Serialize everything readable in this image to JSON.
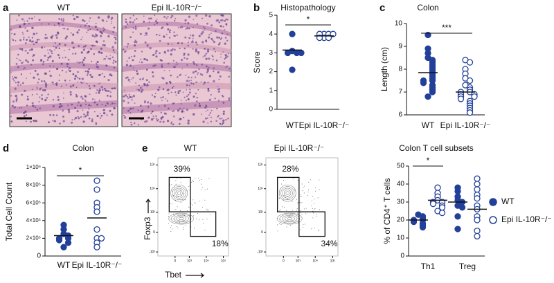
{
  "chart_data": [
    {
      "type": "image",
      "label": "a",
      "title": "WT"
    },
    {
      "type": "image",
      "title": "Epi IL-10R⁻/⁻"
    },
    {
      "type": "dot",
      "label": "b",
      "title": "Histopathology",
      "ylabel": "Score",
      "categories": [
        "WT",
        "Epi IL-10R⁻/⁻"
      ],
      "color": "#22409a",
      "open": [
        false,
        true
      ],
      "values": [
        [
          4,
          3.1,
          3,
          3,
          3,
          2.1
        ],
        [
          4,
          4,
          4,
          4,
          3.8,
          3.8,
          3.8
        ]
      ],
      "means": [
        3.15,
        3.9
      ],
      "ylim": [
        0,
        5
      ],
      "yticks": [
        0,
        1,
        2,
        3,
        4,
        5
      ],
      "significance": "*"
    },
    {
      "type": "dot",
      "label": "c",
      "title": "Colon",
      "ylabel": "Length (cm)",
      "categories": [
        "WT",
        "Epi IL-10R⁻/⁻"
      ],
      "color": "#22409a",
      "open": [
        false,
        true
      ],
      "values": [
        [
          9.5,
          8.9,
          8.7,
          8.5,
          8.4,
          8.3,
          8.2,
          8.1,
          8.0,
          7.9,
          7.8,
          7.7,
          7.6,
          7.5,
          7.5,
          7.4,
          7.3,
          7.2,
          7.1,
          7.0,
          6.8
        ],
        [
          8.4,
          8.3,
          8.0,
          7.8,
          7.6,
          7.5,
          7.3,
          7.2,
          7.1,
          7.0,
          7.0,
          6.9,
          6.9,
          6.8,
          6.8,
          6.7,
          6.6,
          6.5,
          6.4,
          6.3,
          6.2,
          6.1
        ]
      ],
      "means": [
        7.85,
        7.0
      ],
      "ylim": [
        6,
        10
      ],
      "yticks": [
        6,
        7,
        8,
        9,
        10
      ],
      "significance": "***"
    },
    {
      "type": "dot",
      "label": "d",
      "title": "Colon",
      "ylabel": "Total Cell Count",
      "categories": [
        "WT",
        "Epi IL-10R⁻/⁻"
      ],
      "color": "#22409a",
      "open": [
        false,
        true
      ],
      "values": [
        [
          350000,
          300000,
          250000,
          230000,
          200000,
          200000,
          180000,
          150000,
          100000
        ],
        [
          850000,
          750000,
          600000,
          550000,
          500000,
          300000,
          200000,
          200000,
          150000,
          100000
        ]
      ],
      "means": [
        230000,
        430000
      ],
      "ylim": [
        0,
        1000000
      ],
      "yticks": [
        0,
        {
          "value": 200000,
          "label": "2×10⁵"
        },
        {
          "value": 400000,
          "label": "4×10⁵"
        },
        {
          "value": 600000,
          "label": "6×10⁵"
        },
        {
          "value": 800000,
          "label": "8×10⁵"
        },
        {
          "value": 1000000,
          "label": "1×10⁶"
        }
      ],
      "significance": "*"
    },
    {
      "type": "flow",
      "label": "e",
      "title": "WT",
      "xlabel": "Tbet",
      "ylabel": "Foxp3",
      "values": [
        39,
        18
      ],
      "value_labels": [
        "39%",
        "18%"
      ],
      "xlim": [
        -1500,
        200000
      ],
      "ylim": [
        -1500,
        200000
      ],
      "xticks": [
        0,
        {
          "value": 1000,
          "label": "10³"
        },
        {
          "value": 10000,
          "label": "10⁴"
        },
        {
          "value": 100000,
          "label": "10⁵"
        }
      ],
      "yticks": [
        {
          "value": -1000,
          "label": "-10³"
        },
        0,
        {
          "value": 1000,
          "label": "10³"
        },
        {
          "value": 10000,
          "label": "10⁴"
        },
        {
          "value": 100000,
          "label": "10⁵"
        }
      ]
    },
    {
      "type": "flow",
      "title": "Epi IL-10R⁻/⁻",
      "values": [
        28,
        34
      ],
      "value_labels": [
        "28%",
        "34%"
      ],
      "xlim": [
        -1500,
        200000
      ],
      "ylim": [
        -1500,
        200000
      ],
      "xticks": [
        0,
        {
          "value": 1000,
          "label": "10³"
        },
        {
          "value": 10000,
          "label": "10⁴"
        },
        {
          "value": 100000,
          "label": "10⁵"
        }
      ],
      "yticks": [
        {
          "value": -1000,
          "label": "-10³"
        },
        0,
        {
          "value": 1000,
          "label": "10³"
        },
        {
          "value": 10000,
          "label": "10⁴"
        },
        {
          "value": 100000,
          "label": "10⁵"
        }
      ]
    },
    {
      "type": "dot",
      "title": "Colon T cell subsets",
      "ylabel": "% of CD4⁺ T cells",
      "categories": [
        "Th1",
        "Treg"
      ],
      "series": [
        {
          "name": "WT",
          "color": "#22409a",
          "open": false,
          "values": [
            [
              23,
              22,
              21,
              20,
              20,
              19,
              18,
              17,
              16
            ],
            [
              38,
              36,
              33,
              31,
              30,
              28,
              27,
              22,
              15
            ]
          ],
          "means": [
            20,
            30
          ]
        },
        {
          "name": "Epi IL-10R⁻/⁻",
          "color": "#22409a",
          "open": true,
          "values": [
            [
              38,
              35,
              33,
              31,
              30,
              30,
              29,
              28,
              27,
              25,
              24
            ],
            [
              43,
              40,
              37,
              34,
              32,
              28,
              26,
              22,
              20,
              14,
              11
            ]
          ],
          "means": [
            31,
            26
          ]
        }
      ],
      "ylim": [
        0,
        50
      ],
      "yticks": [
        0,
        10,
        20,
        30,
        40,
        50
      ],
      "significance": [
        "*",
        null
      ]
    }
  ]
}
